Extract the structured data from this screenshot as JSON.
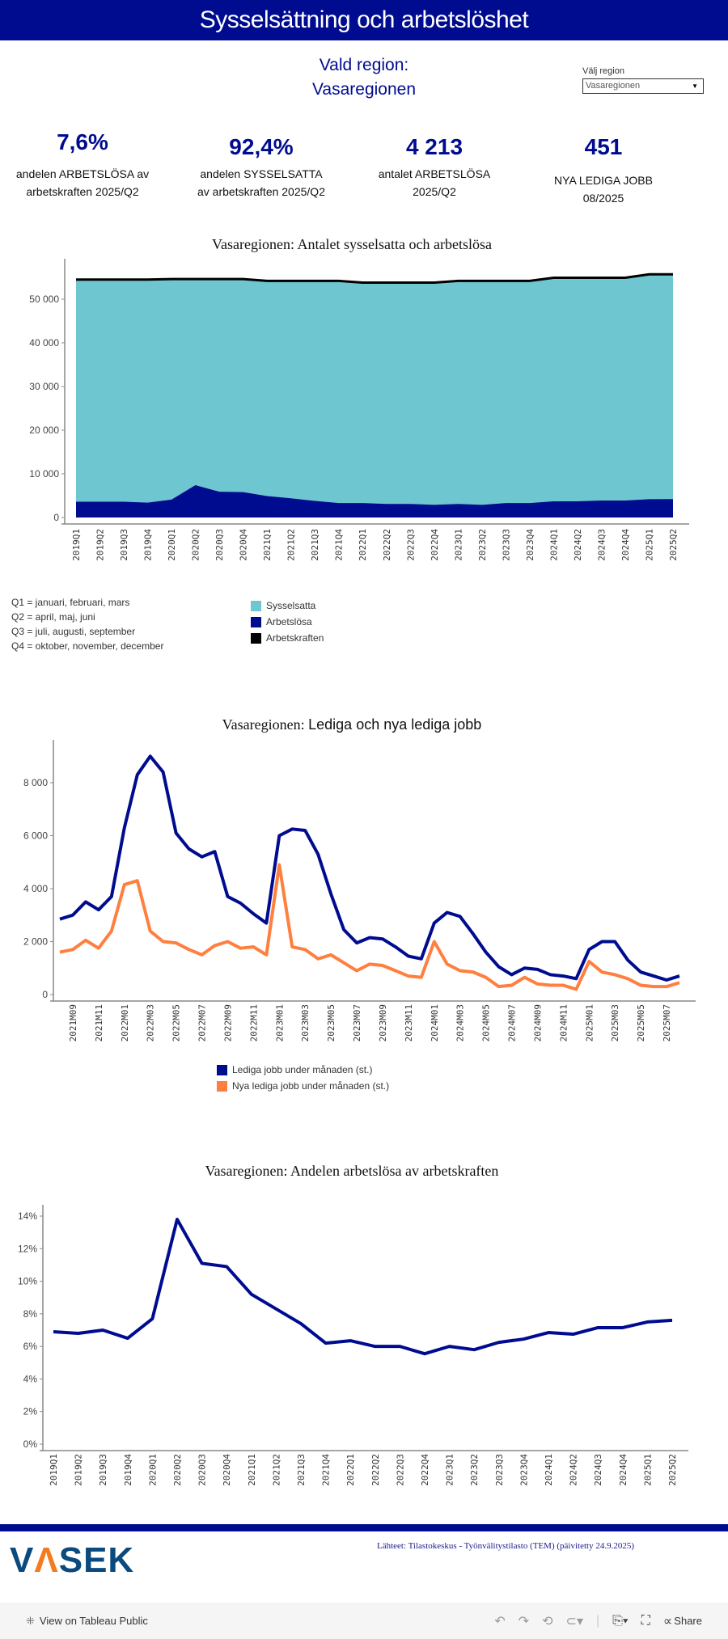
{
  "header": {
    "title": "Sysselsättning och arbetslöshet"
  },
  "region": {
    "label": "Vald region:",
    "value": "Vasaregionen"
  },
  "filter": {
    "label": "Välj region",
    "selected": "Vasaregionen"
  },
  "kpis": [
    {
      "value": "7,6%",
      "label1": "andelen ARBETSLÖSA av",
      "label2": "arbetskraften 2025/Q2"
    },
    {
      "value": "92,4%",
      "label1": "andelen SYSSELSATTA",
      "label2": "av arbetskraften 2025/Q2"
    },
    {
      "value": "4 213",
      "label1": "antalet ARBETSLÖSA",
      "label2": "2025/Q2"
    },
    {
      "value": "451",
      "label1": "NYA LEDIGA JOBB",
      "label2": "08/2025"
    }
  ],
  "quarter_notes": [
    "Q1 = januari, februari, mars",
    "Q2 = april, maj, juni",
    "Q3 = juli, augusti, september",
    "Q4 = oktober, november, december"
  ],
  "colors": {
    "brand": "#000c8f",
    "sysselsatta": "#6ec6d0",
    "arbetslosa": "#000c8f",
    "arbetskraften": "#000000",
    "lediga": "#000c8f",
    "nya": "#ff7f3f"
  },
  "chart_data": [
    {
      "type": "area",
      "title": "Vasaregionen: Antalet sysselsatta och arbetslösa",
      "ylim": [
        0,
        57000
      ],
      "yticks": [
        "0",
        "10 000",
        "20 000",
        "30 000",
        "40 000",
        "50 000"
      ],
      "ytick_values": [
        0,
        10000,
        20000,
        30000,
        40000,
        50000
      ],
      "categories": [
        "2019Q1",
        "2019Q2",
        "2019Q3",
        "2019Q4",
        "2020Q1",
        "2020Q2",
        "2020Q3",
        "2020Q4",
        "2021Q1",
        "2021Q2",
        "2021Q3",
        "2021Q4",
        "2022Q1",
        "2022Q2",
        "2022Q3",
        "2022Q4",
        "2023Q1",
        "2023Q2",
        "2023Q3",
        "2023Q4",
        "2024Q1",
        "2024Q2",
        "2024Q3",
        "2024Q4",
        "2025Q1",
        "2025Q2"
      ],
      "legend": [
        "Sysselsatta",
        "Arbetslösa",
        "Arbetskraften"
      ],
      "series": [
        {
          "name": "Arbetskraften",
          "values": [
            54500,
            54500,
            54500,
            54500,
            54600,
            54600,
            54600,
            54600,
            54200,
            54200,
            54200,
            54200,
            53800,
            53800,
            53800,
            53800,
            54200,
            54200,
            54200,
            54200,
            54900,
            54900,
            54900,
            54900,
            55700,
            55700
          ]
        },
        {
          "name": "Arbetslösa",
          "values": [
            3600,
            3600,
            3600,
            3400,
            4100,
            7400,
            5900,
            5800,
            4900,
            4400,
            3800,
            3300,
            3300,
            3100,
            3100,
            2900,
            3100,
            2900,
            3300,
            3300,
            3700,
            3700,
            3900,
            3900,
            4200,
            4213
          ]
        }
      ]
    },
    {
      "type": "line",
      "title_prefix": "Vasaregionen:",
      "title": "Lediga och nya lediga jobb",
      "ylim": [
        0,
        9500
      ],
      "yticks": [
        "0",
        "2 000",
        "4 000",
        "6 000",
        "8 000"
      ],
      "ytick_values": [
        0,
        2000,
        4000,
        6000,
        8000
      ],
      "categories": [
        "2021M08",
        "2021M09",
        "2021M10",
        "2021M11",
        "2021M12",
        "2022M01",
        "2022M02",
        "2022M03",
        "2022M04",
        "2022M05",
        "2022M06",
        "2022M07",
        "2022M08",
        "2022M09",
        "2022M10",
        "2022M11",
        "2022M12",
        "2023M01",
        "2023M02",
        "2023M03",
        "2023M04",
        "2023M05",
        "2023M06",
        "2023M07",
        "2023M08",
        "2023M09",
        "2023M10",
        "2023M11",
        "2023M12",
        "2024M01",
        "2024M02",
        "2024M03",
        "2024M04",
        "2024M05",
        "2024M06",
        "2024M07",
        "2024M08",
        "2024M09",
        "2024M10",
        "2024M11",
        "2024M12",
        "2025M01",
        "2025M02",
        "2025M03",
        "2025M04",
        "2025M05",
        "2025M06",
        "2025M07",
        "2025M08"
      ],
      "xtick_labels": [
        "2021M09",
        "2021M11",
        "2022M01",
        "2022M03",
        "2022M05",
        "2022M07",
        "2022M09",
        "2022M11",
        "2023M01",
        "2023M03",
        "2023M05",
        "2023M07",
        "2023M09",
        "2023M11",
        "2024M01",
        "2024M03",
        "2024M05",
        "2024M07",
        "2024M09",
        "2024M11",
        "2025M01",
        "2025M03",
        "2025M05",
        "2025M07"
      ],
      "series": [
        {
          "name": "Lediga jobb under månaden (st.)",
          "values": [
            2850,
            3000,
            3500,
            3200,
            3700,
            6300,
            8300,
            9000,
            8400,
            6100,
            5500,
            5200,
            5400,
            3700,
            3450,
            3050,
            2700,
            6000,
            6250,
            6200,
            5300,
            3800,
            2450,
            1950,
            2150,
            2100,
            1800,
            1450,
            1350,
            2700,
            3100,
            2950,
            2300,
            1600,
            1050,
            750,
            1000,
            950,
            750,
            700,
            600,
            1700,
            2000,
            2000,
            1300,
            850,
            700,
            550,
            700
          ]
        },
        {
          "name": "Nya lediga jobb under månaden (st.)",
          "values": [
            1600,
            1700,
            2050,
            1750,
            2400,
            4150,
            4300,
            2400,
            2000,
            1950,
            1700,
            1500,
            1850,
            2000,
            1750,
            1800,
            1500,
            4900,
            1800,
            1700,
            1350,
            1500,
            1200,
            900,
            1150,
            1100,
            900,
            700,
            650,
            2000,
            1150,
            900,
            850,
            650,
            300,
            350,
            650,
            400,
            350,
            350,
            200,
            1250,
            850,
            750,
            600,
            350,
            300,
            300,
            451
          ]
        }
      ]
    },
    {
      "type": "line",
      "title": "Vasaregionen: Andelen arbetslösa av arbetskraften",
      "ylim": [
        0,
        14.6
      ],
      "yticks": [
        "0%",
        "2%",
        "4%",
        "6%",
        "8%",
        "10%",
        "12%",
        "14%"
      ],
      "ytick_values": [
        0,
        2,
        4,
        6,
        8,
        10,
        12,
        14
      ],
      "categories": [
        "2019Q1",
        "2019Q2",
        "2019Q3",
        "2019Q4",
        "2020Q1",
        "2020Q2",
        "2020Q3",
        "2020Q4",
        "2021Q1",
        "2021Q2",
        "2021Q3",
        "2021Q4",
        "2022Q1",
        "2022Q2",
        "2022Q3",
        "2022Q4",
        "2023Q1",
        "2023Q2",
        "2023Q3",
        "2023Q4",
        "2024Q1",
        "2024Q2",
        "2024Q3",
        "2024Q4",
        "2025Q1",
        "2025Q2"
      ],
      "series": [
        {
          "name": "Andelen arbetslösa (%)",
          "values": [
            6.9,
            6.8,
            7.0,
            6.5,
            7.7,
            13.8,
            11.1,
            10.9,
            9.2,
            8.3,
            7.4,
            6.2,
            6.35,
            6.0,
            6.0,
            5.55,
            6.0,
            5.8,
            6.25,
            6.45,
            6.85,
            6.75,
            7.15,
            7.15,
            7.5,
            7.6
          ]
        }
      ]
    }
  ],
  "footer": {
    "logo": "VASEK",
    "source": "Lähteet: Tilastokeskus - Työnvälitystilasto (TEM) (päivitetty 24.9.2025)"
  },
  "toolbar": {
    "view_label": "View on Tableau Public",
    "share_label": "Share"
  }
}
